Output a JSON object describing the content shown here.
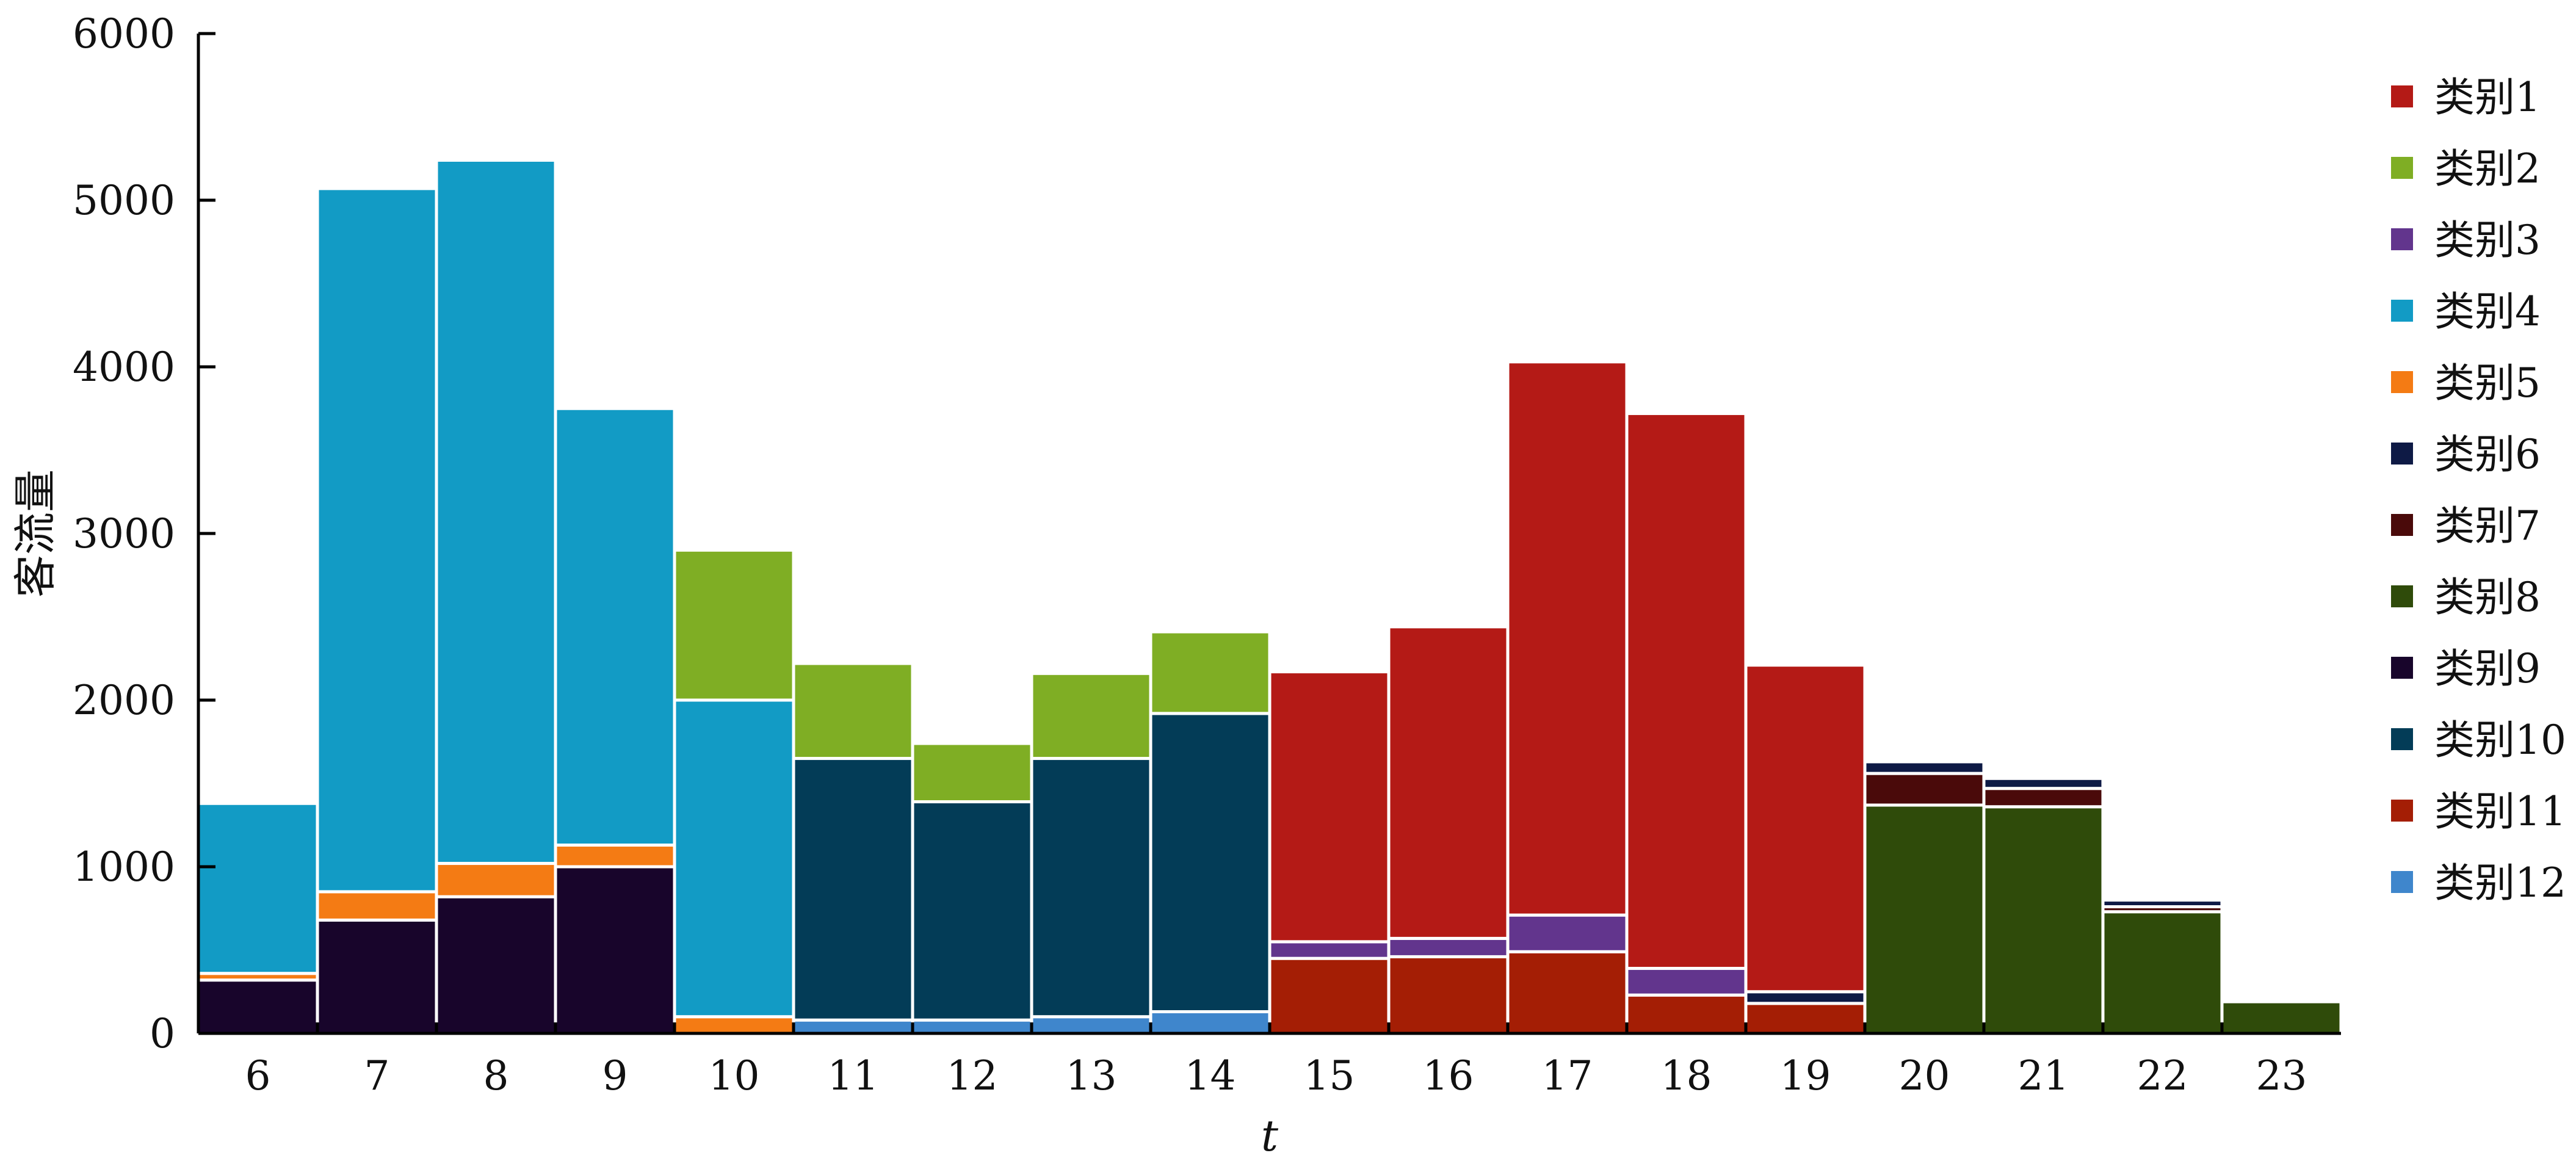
{
  "chart_data": {
    "type": "bar",
    "stacked": true,
    "title": "",
    "xlabel": "t",
    "ylabel": "客流量",
    "ylim": [
      0,
      6000
    ],
    "yticks": [
      0,
      1000,
      2000,
      3000,
      4000,
      5000,
      6000
    ],
    "grid": false,
    "legend_position": "right",
    "categories": [
      "6",
      "7",
      "8",
      "9",
      "10",
      "11",
      "12",
      "13",
      "14",
      "15",
      "16",
      "17",
      "18",
      "19",
      "20",
      "21",
      "22",
      "23"
    ],
    "series": [
      {
        "name": "类别1",
        "color": "#b41a16",
        "values": [
          0,
          0,
          0,
          0,
          0,
          0,
          0,
          0,
          0,
          1620,
          1870,
          3320,
          3330,
          1960,
          0,
          0,
          0,
          0
        ]
      },
      {
        "name": "类别2",
        "color": "#7fae24",
        "values": [
          0,
          0,
          0,
          0,
          900,
          570,
          350,
          510,
          490,
          0,
          0,
          0,
          0,
          0,
          0,
          0,
          0,
          0
        ]
      },
      {
        "name": "类别3",
        "color": "#62358d",
        "values": [
          0,
          0,
          0,
          0,
          0,
          0,
          0,
          0,
          0,
          100,
          110,
          220,
          160,
          0,
          0,
          0,
          0,
          0
        ]
      },
      {
        "name": "类别4",
        "color": "#129bc5",
        "values": [
          1020,
          4220,
          4220,
          2620,
          1900,
          0,
          0,
          0,
          0,
          0,
          0,
          0,
          0,
          0,
          0,
          0,
          0,
          0
        ]
      },
      {
        "name": "类别5",
        "color": "#f47b14",
        "values": [
          40,
          170,
          200,
          130,
          100,
          0,
          0,
          0,
          0,
          0,
          0,
          0,
          0,
          0,
          0,
          0,
          0,
          0
        ]
      },
      {
        "name": "类别6",
        "color": "#0e1a45",
        "values": [
          0,
          0,
          0,
          0,
          0,
          0,
          0,
          0,
          0,
          0,
          0,
          0,
          0,
          70,
          70,
          60,
          40,
          0
        ]
      },
      {
        "name": "类别7",
        "color": "#4a0a0a",
        "values": [
          0,
          0,
          0,
          0,
          0,
          0,
          0,
          0,
          0,
          0,
          0,
          0,
          0,
          0,
          190,
          110,
          30,
          0
        ]
      },
      {
        "name": "类别8",
        "color": "#2f4b0a",
        "values": [
          0,
          0,
          0,
          0,
          0,
          0,
          0,
          0,
          0,
          0,
          0,
          0,
          0,
          0,
          1370,
          1360,
          730,
          190
        ]
      },
      {
        "name": "类别9",
        "color": "#18052b",
        "values": [
          320,
          680,
          820,
          1000,
          0,
          0,
          0,
          0,
          0,
          0,
          0,
          0,
          0,
          0,
          0,
          0,
          0,
          0
        ]
      },
      {
        "name": "类别10",
        "color": "#033c57",
        "values": [
          0,
          0,
          0,
          0,
          0,
          1570,
          1310,
          1550,
          1790,
          0,
          0,
          0,
          0,
          0,
          0,
          0,
          0,
          0
        ]
      },
      {
        "name": "类别11",
        "color": "#a41e05",
        "values": [
          0,
          0,
          0,
          0,
          0,
          0,
          0,
          0,
          0,
          450,
          460,
          490,
          230,
          180,
          0,
          0,
          0,
          0
        ]
      },
      {
        "name": "类别12",
        "color": "#3f86cc",
        "values": [
          0,
          0,
          0,
          0,
          0,
          80,
          80,
          100,
          130,
          0,
          0,
          0,
          0,
          0,
          0,
          0,
          0,
          0
        ]
      }
    ]
  }
}
